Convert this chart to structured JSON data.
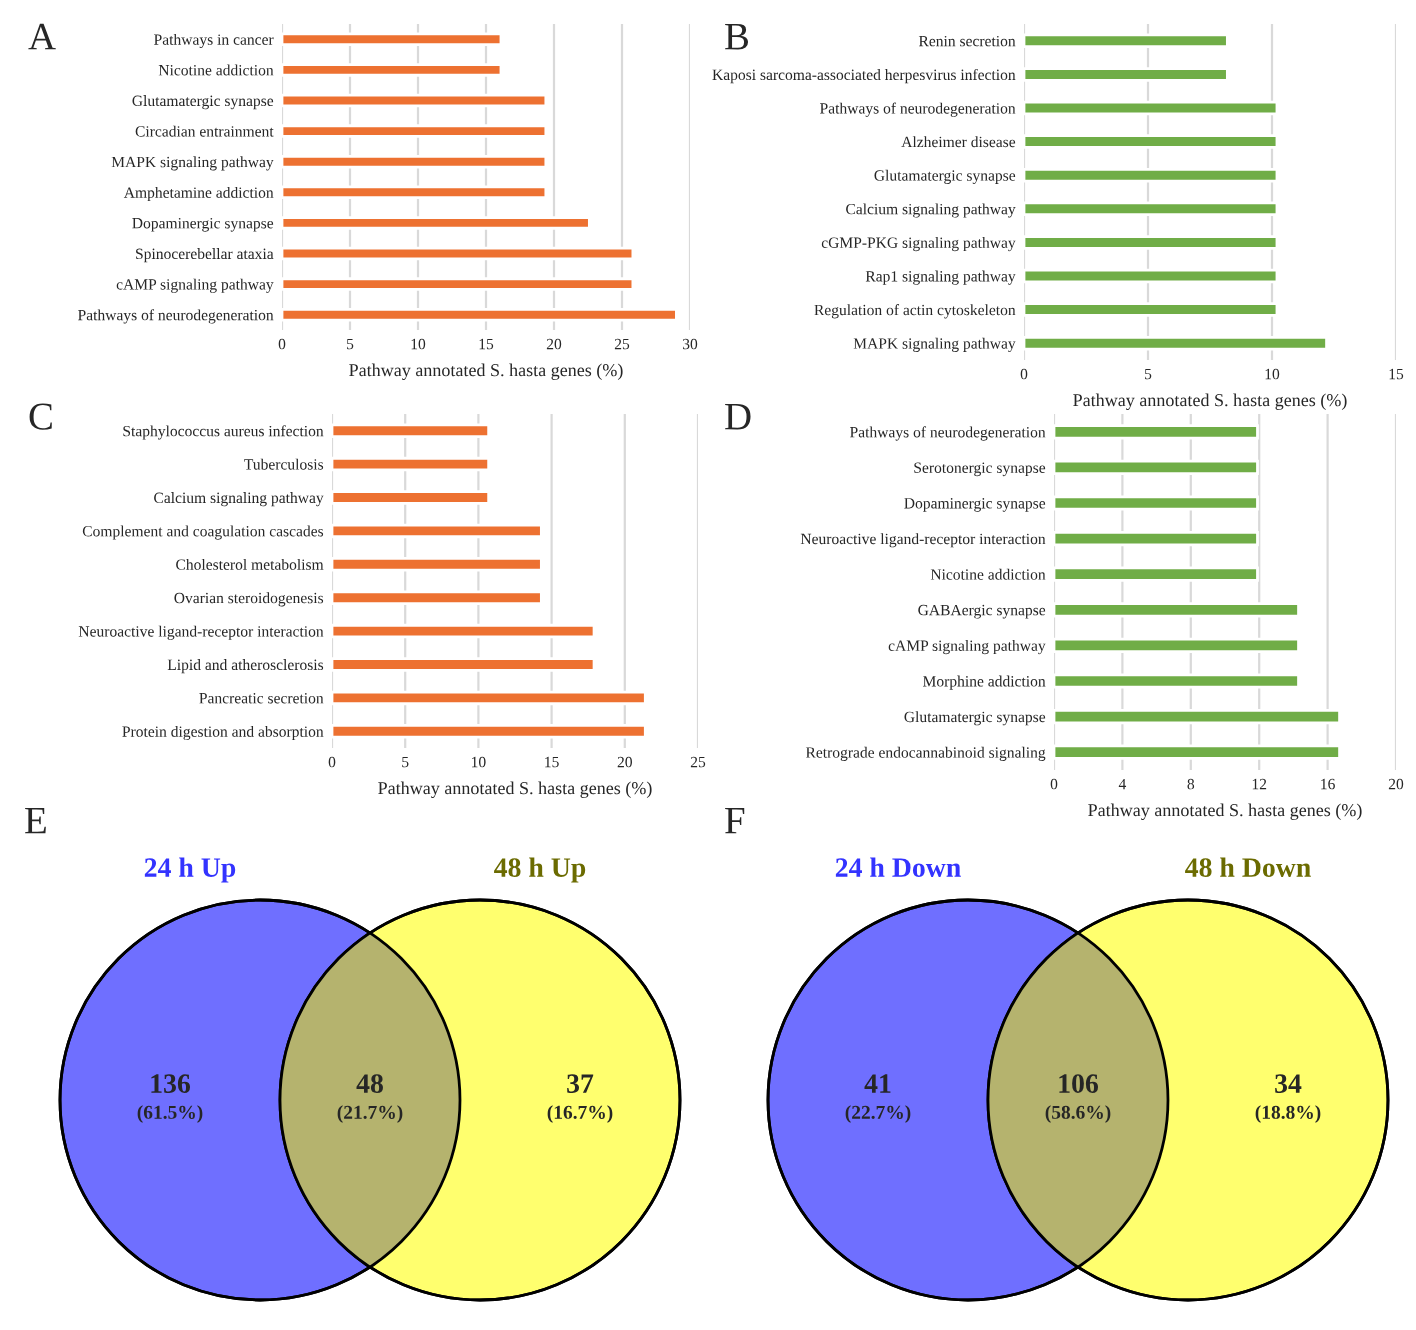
{
  "chart_data": [
    {
      "type": "bar",
      "title": "A",
      "orientation": "horizontal",
      "color": "#ed7131",
      "xlabel": "Pathway annotated S. hasta genes (%)",
      "categories": [
        "Pathways in cancer",
        "Nicotine addiction",
        "Glutamatergic synapse",
        "Circadian entrainment",
        "MAPK signaling pathway",
        "Amphetamine addiction",
        "Dopaminergic synapse",
        "Spinocerebellar ataxia",
        "cAMP signaling pathway",
        "Pathways of neurodegeneration"
      ],
      "values": [
        16.1,
        16.1,
        19.4,
        19.4,
        19.4,
        19.4,
        22.6,
        25.8,
        25.8,
        29.0
      ],
      "xlim": [
        0,
        30
      ],
      "xticks": [
        0,
        5,
        10,
        15,
        20,
        25,
        30
      ],
      "grid": "x"
    },
    {
      "type": "bar",
      "title": "B",
      "orientation": "horizontal",
      "color": "#70ad47",
      "xlabel": "Pathway annotated S. hasta genes (%)",
      "categories": [
        "Renin secretion",
        "Kaposi sarcoma-associated herpesvirus infection",
        "Pathways of neurodegeneration",
        "Alzheimer disease",
        "Glutamatergic synapse",
        "Calcium signaling pathway",
        "cGMP-PKG signaling pathway",
        "Rap1 signaling pathway",
        "Regulation of actin cytoskeleton",
        "MAPK signaling pathway"
      ],
      "values": [
        8.2,
        8.2,
        10.2,
        10.2,
        10.2,
        10.2,
        10.2,
        10.2,
        10.2,
        12.2
      ],
      "xlim": [
        0,
        15
      ],
      "xticks": [
        0,
        5,
        10,
        15
      ],
      "grid": "x"
    },
    {
      "type": "bar",
      "title": "C",
      "orientation": "horizontal",
      "color": "#ed7131",
      "xlabel": "Pathway annotated S. hasta genes (%)",
      "categories": [
        "Staphylococcus aureus infection",
        "Tuberculosis",
        "Calcium signaling pathway",
        "Complement and coagulation cascades",
        "Cholesterol metabolism",
        "Ovarian steroidogenesis",
        "Neuroactive ligand-receptor interaction",
        "Lipid and atherosclerosis",
        "Pancreatic secretion",
        "Protein digestion and absorption"
      ],
      "values": [
        10.7,
        10.7,
        10.7,
        14.3,
        14.3,
        14.3,
        17.9,
        17.9,
        21.4,
        21.4
      ],
      "xlim": [
        0,
        25
      ],
      "xticks": [
        0,
        5,
        10,
        15,
        20,
        25
      ],
      "grid": "x"
    },
    {
      "type": "bar",
      "title": "D",
      "orientation": "horizontal",
      "color": "#70ad47",
      "xlabel": "Pathway annotated S. hasta genes (%)",
      "categories": [
        "Pathways of neurodegeneration",
        "Serotonergic synapse",
        "Dopaminergic synapse",
        "Neuroactive ligand-receptor interaction",
        "Nicotine addiction",
        "GABAergic synapse",
        "cAMP signaling pathway",
        "Morphine addiction",
        "Glutamatergic synapse",
        "Retrograde endocannabinoid signaling"
      ],
      "values": [
        11.9,
        11.9,
        11.9,
        11.9,
        11.9,
        14.3,
        14.3,
        14.3,
        16.7,
        16.7
      ],
      "xlim": [
        0,
        20
      ],
      "xticks": [
        0,
        4,
        8,
        12,
        16,
        20
      ],
      "grid": "x"
    },
    {
      "type": "other",
      "title": "E",
      "categories": [
        "24 h Up",
        null,
        "48 h Up"
      ],
      "values": [
        61.5,
        21.7,
        16.7
      ],
      "value_labels": [
        "(61.5%)",
        "(21.7%)",
        "(16.7%)"
      ],
      "annotations": [
        "136",
        "48",
        "37"
      ],
      "colors": [
        "#6f6fff",
        "#b5b36e",
        "#ffff6e"
      ]
    },
    {
      "type": "other",
      "title": "F",
      "categories": [
        "24 h Down",
        null,
        "48 h Down"
      ],
      "values": [
        22.7,
        58.6,
        18.8
      ],
      "value_labels": [
        "(22.7%)",
        "(58.6%)",
        "(18.8%)"
      ],
      "annotations": [
        "41",
        "106",
        "34"
      ],
      "colors": [
        "#6f6fff",
        "#b5b36e",
        "#ffff6e"
      ]
    }
  ]
}
